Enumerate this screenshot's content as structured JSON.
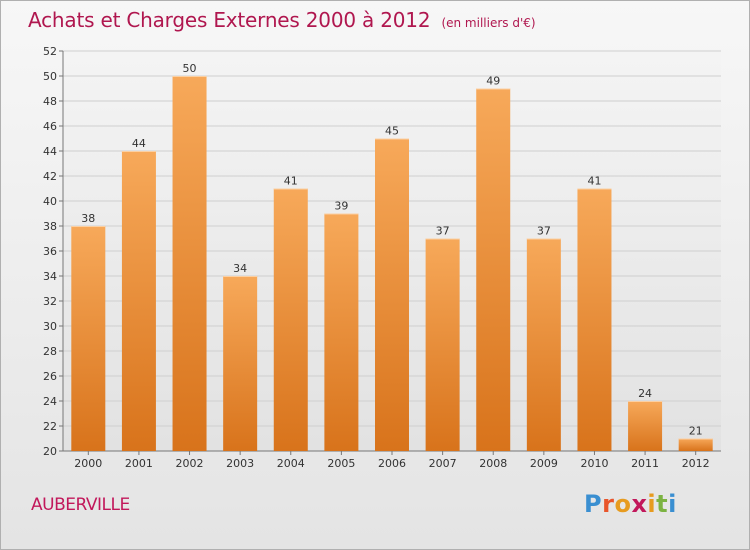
{
  "header": {
    "title": "Achats et Charges Externes 2000 à 2012",
    "subtitle": "(en milliers d'€)"
  },
  "footer": {
    "commune": "AUBERVILLE",
    "logo_text": "Proxiti"
  },
  "colors": {
    "title": "#b0174f",
    "commune": "#c2185b",
    "bar_top": "#f7a95a",
    "bar_bottom": "#d8731b",
    "logo_letters": [
      "#3a8fd1",
      "#e8552b",
      "#e79b1f",
      "#c2185b",
      "#e79b1f",
      "#7cb342",
      "#3a8fd1"
    ]
  },
  "chart_data": {
    "type": "bar",
    "categories": [
      "2000",
      "2001",
      "2002",
      "2003",
      "2004",
      "2005",
      "2006",
      "2007",
      "2008",
      "2009",
      "2010",
      "2011",
      "2012"
    ],
    "values": [
      38,
      44,
      50,
      34,
      41,
      39,
      45,
      37,
      49,
      37,
      41,
      24,
      21
    ],
    "ylim": [
      20,
      52
    ],
    "yticks": [
      20,
      22,
      24,
      26,
      28,
      30,
      32,
      34,
      36,
      38,
      40,
      42,
      44,
      46,
      48,
      50,
      52
    ],
    "grid": true
  }
}
